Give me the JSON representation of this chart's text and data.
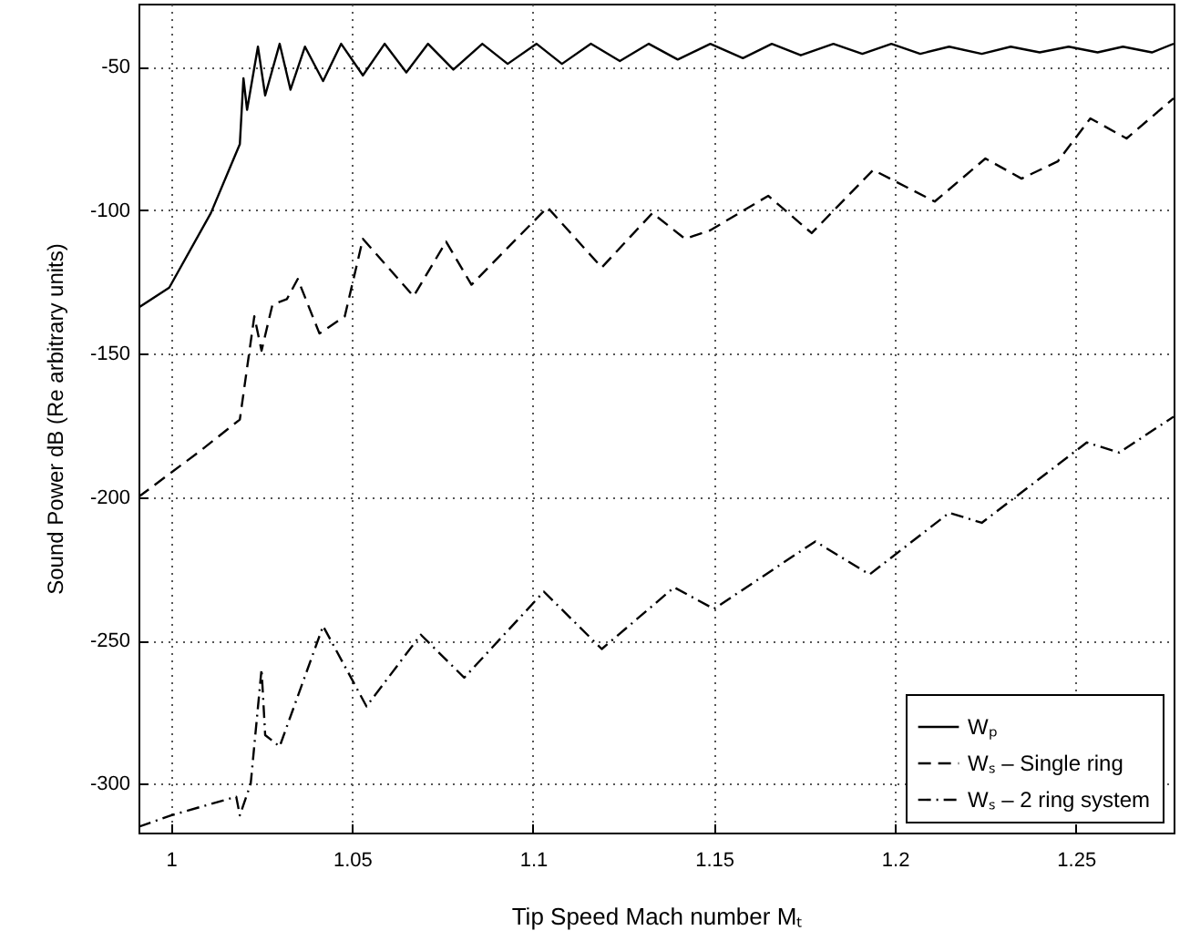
{
  "chart_data": {
    "type": "line",
    "xlabel": "Tip Speed Mach number Mₜ",
    "ylabel": "Sound Power dB (Re arbitrary units)",
    "xlim": [
      0.991,
      1.277
    ],
    "xticks": [
      1,
      1.05,
      1.1,
      1.15,
      1.2,
      1.25
    ],
    "ylim": [
      -317,
      -28
    ],
    "yticks": [
      -300,
      -250,
      -200,
      -150,
      -100,
      -50
    ],
    "grid": true,
    "legend": "bottom right",
    "marker": "none",
    "series": [
      {
        "name": "Wₚ",
        "color": "#000000",
        "line_style": "solid",
        "x": [
          0.991,
          0.9995,
          1.011,
          1.019,
          1.02,
          1.021,
          1.024,
          1.026,
          1.03,
          1.033,
          1.037,
          1.042,
          1.047,
          1.053,
          1.059,
          1.065,
          1.071,
          1.078,
          1.086,
          1.093,
          1.101,
          1.108,
          1.116,
          1.124,
          1.132,
          1.14,
          1.149,
          1.158,
          1.166,
          1.174,
          1.183,
          1.191,
          1.199,
          1.207,
          1.215,
          1.224,
          1.232,
          1.24,
          1.248,
          1.256,
          1.263,
          1.271,
          1.277
        ],
        "values": [
          -134,
          -127,
          -101,
          -77,
          -54,
          -65,
          -43,
          -60,
          -42,
          -58,
          -43,
          -55,
          -42,
          -53,
          -42,
          -52,
          -42,
          -51,
          -42,
          -49,
          -42,
          -49,
          -42,
          -48,
          -42,
          -47.5,
          -42,
          -47,
          -42,
          -46,
          -42,
          -45.5,
          -42,
          -45.5,
          -43,
          -45.5,
          -43,
          -45,
          -43,
          -45,
          -43,
          -45,
          -42
        ]
      },
      {
        "name": "Wₛ – Single ring",
        "color": "#000000",
        "line_style": "dashed",
        "x": [
          0.991,
          1.008,
          1.019,
          1.023,
          1.025,
          1.028,
          1.032,
          1.035,
          1.041,
          1.048,
          1.053,
          1.067,
          1.076,
          1.083,
          1.104,
          1.119,
          1.133,
          1.142,
          1.149,
          1.165,
          1.177,
          1.194,
          1.211,
          1.225,
          1.235,
          1.245,
          1.254,
          1.264,
          1.277
        ],
        "values": [
          -200,
          -184,
          -173,
          -137,
          -149,
          -133,
          -131,
          -124,
          -143,
          -137,
          -110,
          -130,
          -111,
          -126,
          -99,
          -120,
          -101,
          -110,
          -107,
          -95,
          -108,
          -86,
          -97,
          -82,
          -89,
          -83,
          -68,
          -75,
          -61
        ]
      },
      {
        "name": "Wₛ – 2 ring system",
        "color": "#000000",
        "line_style": "dashdot",
        "x": [
          0.991,
          1.0,
          1.018,
          1.019,
          1.022,
          1.025,
          1.026,
          1.03,
          1.042,
          1.054,
          1.069,
          1.081,
          1.103,
          1.119,
          1.139,
          1.15,
          1.178,
          1.193,
          1.215,
          1.224,
          1.253,
          1.262,
          1.277
        ],
        "values": [
          -315,
          -311,
          -304.5,
          -311,
          -300,
          -260,
          -283,
          -287,
          -245,
          -273,
          -248,
          -263,
          -233,
          -253,
          -231.5,
          -239,
          -215.5,
          -227,
          -205.5,
          -209,
          -181,
          -184.5,
          -172
        ]
      }
    ]
  }
}
